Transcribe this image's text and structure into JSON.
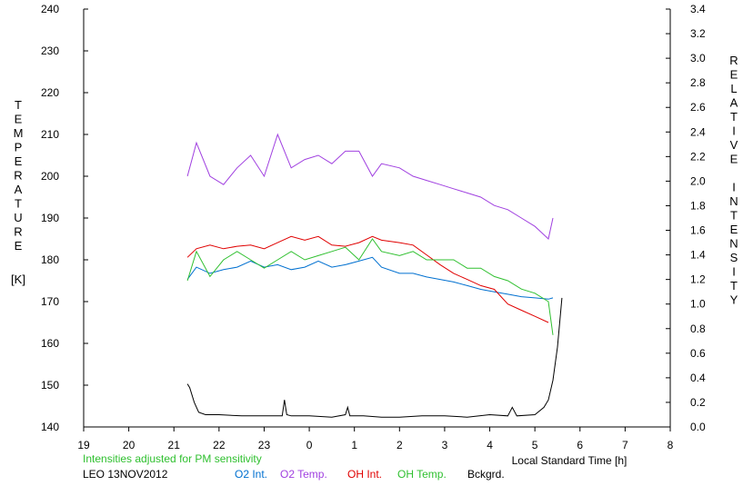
{
  "chart_data": {
    "type": "line",
    "title": "",
    "left_axis": {
      "label": "TEMPERATURE",
      "unit": "[K]",
      "range": [
        140,
        240
      ],
      "ticks": [
        "140",
        "150",
        "160",
        "170",
        "180",
        "190",
        "200",
        "210",
        "220",
        "230",
        "240"
      ]
    },
    "right_axis": {
      "label": "RELATIVE INTENSITY",
      "range": [
        0.0,
        3.4
      ],
      "ticks": [
        "0.0",
        "0.2",
        "0.4",
        "0.6",
        "0.8",
        "1.0",
        "1.2",
        "1.4",
        "1.6",
        "1.8",
        "2.0",
        "2.2",
        "2.4",
        "2.6",
        "2.8",
        "3.0",
        "3.2",
        "3.4"
      ]
    },
    "x_axis": {
      "label": "Local Standard Time [h]",
      "range": [
        19,
        32
      ],
      "ticks": [
        "19",
        "20",
        "21",
        "22",
        "23",
        "0",
        "1",
        "2",
        "3",
        "4",
        "5",
        "6",
        "7",
        "8"
      ]
    },
    "note": "Intensities adjusted for PM sensitivity",
    "station": "LEO 13NOV2012",
    "grid": false,
    "series": [
      {
        "name": "O2 Int.",
        "color": "#0070d0",
        "axis": "right",
        "x": [
          21.3,
          21.5,
          21.8,
          22.1,
          22.4,
          22.7,
          23.0,
          23.3,
          23.6,
          23.9,
          24.2,
          24.5,
          24.8,
          25.1,
          25.4,
          25.6,
          26.0,
          26.3,
          26.6,
          26.9,
          27.2,
          27.5,
          27.8,
          28.1,
          28.4,
          28.7,
          29.0,
          29.3,
          29.4
        ],
        "y": [
          1.2,
          1.3,
          1.25,
          1.28,
          1.3,
          1.35,
          1.3,
          1.32,
          1.28,
          1.3,
          1.35,
          1.3,
          1.32,
          1.35,
          1.38,
          1.3,
          1.25,
          1.25,
          1.22,
          1.2,
          1.18,
          1.15,
          1.12,
          1.1,
          1.08,
          1.06,
          1.05,
          1.04,
          1.05
        ]
      },
      {
        "name": "O2 Temp.",
        "color": "#a040e0",
        "axis": "left",
        "x": [
          21.3,
          21.5,
          21.8,
          22.1,
          22.4,
          22.7,
          23.0,
          23.3,
          23.6,
          23.9,
          24.2,
          24.5,
          24.8,
          25.1,
          25.4,
          25.6,
          26.0,
          26.3,
          26.6,
          26.9,
          27.2,
          27.5,
          27.8,
          28.1,
          28.4,
          28.7,
          29.0,
          29.3,
          29.4
        ],
        "y": [
          200,
          208,
          200,
          198,
          202,
          205,
          200,
          210,
          202,
          204,
          205,
          203,
          206,
          206,
          200,
          203,
          202,
          200,
          199,
          198,
          197,
          196,
          195,
          193,
          192,
          190,
          188,
          185,
          190
        ]
      },
      {
        "name": "OH Int.",
        "color": "#e00000",
        "axis": "right",
        "x": [
          21.3,
          21.5,
          21.8,
          22.1,
          22.4,
          22.7,
          23.0,
          23.3,
          23.6,
          23.9,
          24.2,
          24.5,
          24.8,
          25.1,
          25.4,
          25.6,
          26.0,
          26.3,
          26.6,
          26.9,
          27.2,
          27.5,
          27.8,
          28.1,
          28.4,
          28.7,
          29.0,
          29.3
        ],
        "y": [
          1.38,
          1.45,
          1.48,
          1.45,
          1.47,
          1.48,
          1.45,
          1.5,
          1.55,
          1.52,
          1.55,
          1.48,
          1.47,
          1.5,
          1.55,
          1.52,
          1.5,
          1.48,
          1.4,
          1.32,
          1.25,
          1.2,
          1.15,
          1.12,
          1.0,
          0.95,
          0.9,
          0.85
        ]
      },
      {
        "name": "OH Temp.",
        "color": "#30c030",
        "axis": "left",
        "x": [
          21.3,
          21.5,
          21.8,
          22.1,
          22.4,
          22.7,
          23.0,
          23.3,
          23.6,
          23.9,
          24.2,
          24.5,
          24.8,
          25.1,
          25.4,
          25.6,
          26.0,
          26.3,
          26.6,
          26.9,
          27.2,
          27.5,
          27.8,
          28.1,
          28.4,
          28.7,
          29.0,
          29.3,
          29.4
        ],
        "y": [
          175,
          182,
          176,
          180,
          182,
          180,
          178,
          180,
          182,
          180,
          181,
          182,
          183,
          180,
          185,
          182,
          181,
          182,
          180,
          180,
          180,
          178,
          178,
          176,
          175,
          173,
          172,
          170,
          162
        ]
      },
      {
        "name": "Bckgrd.",
        "color": "#000000",
        "axis": "right",
        "x": [
          21.3,
          21.35,
          21.45,
          21.55,
          21.7,
          22.0,
          22.5,
          23.0,
          23.4,
          23.45,
          23.5,
          23.6,
          24.0,
          24.5,
          24.8,
          24.85,
          24.9,
          25.2,
          25.6,
          26.0,
          26.5,
          27.0,
          27.5,
          28.0,
          28.4,
          28.5,
          28.6,
          29.0,
          29.2,
          29.3,
          29.4,
          29.5,
          29.6
        ],
        "y": [
          0.35,
          0.32,
          0.2,
          0.12,
          0.1,
          0.1,
          0.09,
          0.09,
          0.09,
          0.22,
          0.1,
          0.09,
          0.09,
          0.08,
          0.1,
          0.16,
          0.09,
          0.09,
          0.08,
          0.08,
          0.09,
          0.09,
          0.08,
          0.1,
          0.09,
          0.16,
          0.09,
          0.1,
          0.16,
          0.22,
          0.38,
          0.65,
          1.05
        ]
      }
    ]
  }
}
